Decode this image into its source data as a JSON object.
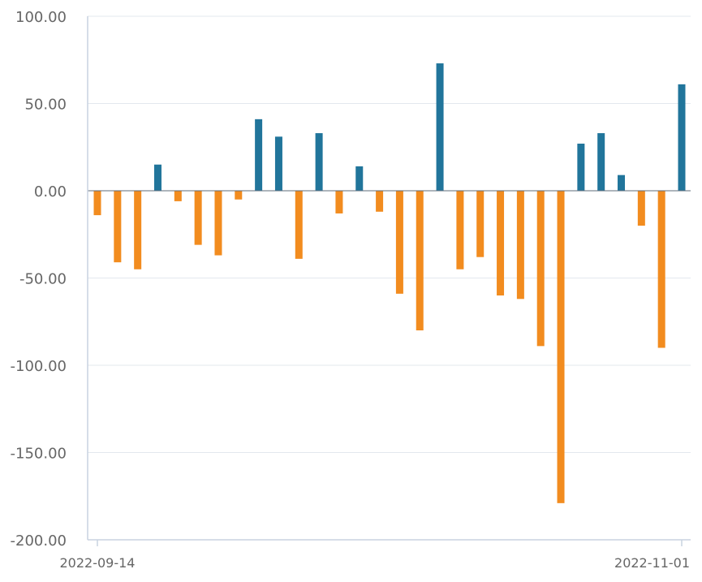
{
  "chart_data": {
    "type": "bar",
    "title": "",
    "xlabel": "",
    "ylabel": "",
    "ylim": [
      -200,
      100
    ],
    "yticks": [
      100,
      50,
      0,
      -50,
      -100,
      -150,
      -200
    ],
    "ytick_labels": [
      "100.00",
      "50.00",
      "0.00",
      "-50.00",
      "-100.00",
      "-150.00",
      "-200.00"
    ],
    "xtick_labels": [
      "2022-09-14",
      "2022-11-01"
    ],
    "grid": true,
    "colors": {
      "positive": "#21759b",
      "negative": "#f28c1f",
      "grid": "#e3e8ee",
      "axis": "#c8d2e0"
    },
    "values": [
      -14,
      -41,
      -45,
      15,
      -6,
      -31,
      -37,
      -5,
      41,
      31,
      -39,
      33,
      -13,
      14,
      -12,
      -59,
      -80,
      73,
      -45,
      -38,
      -60,
      -62,
      -89,
      -179,
      27,
      33,
      9,
      -20,
      -90,
      61
    ]
  }
}
